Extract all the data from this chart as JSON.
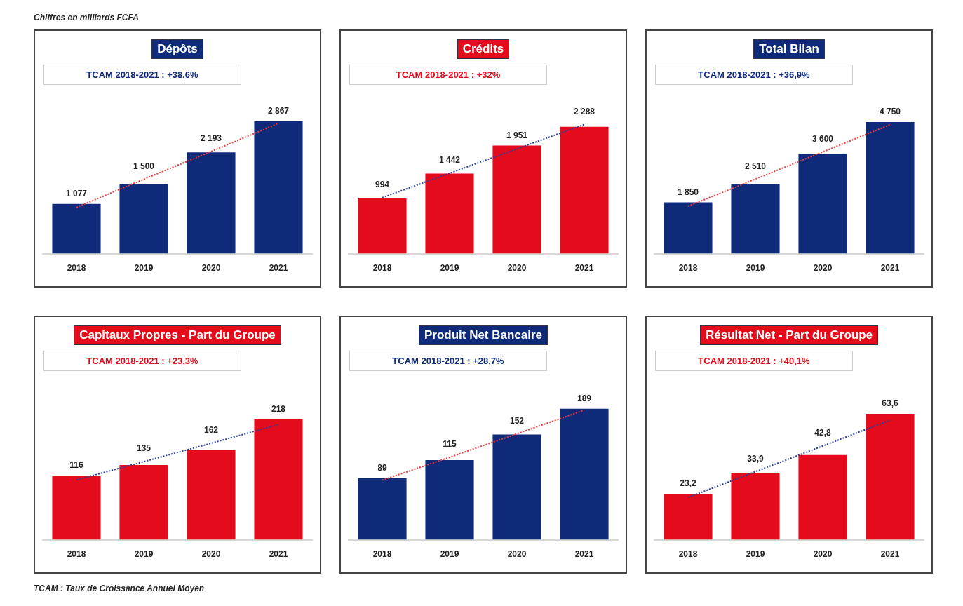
{
  "chart_data": [
    {
      "type": "bar",
      "title": "Dépôts",
      "subtitle": "TCAM 2018-2021 : +38,6%",
      "annotations": [
        "Chiffres en milliards FCFA"
      ],
      "categories": [
        "2018",
        "2019",
        "2020",
        "2021"
      ],
      "series": [
        {
          "type": "bar",
          "color": "#0e2a78",
          "values": [
            1077,
            1500,
            2193,
            2867
          ],
          "value_labels": [
            "1 077",
            "1 500",
            "2 193",
            "2 867"
          ]
        },
        {
          "type": "line",
          "color": "#f03a3a",
          "values": [
            1000,
            1610,
            2210,
            2820
          ],
          "line_style": "dotted",
          "marker": "none"
        }
      ]
    },
    {
      "type": "bar",
      "title": "Crédits",
      "subtitle": "TCAM 2018-2021 : +32%",
      "categories": [
        "2018",
        "2019",
        "2020",
        "2021"
      ],
      "series": [
        {
          "type": "bar",
          "color": "#e30b1c",
          "values": [
            994,
            1442,
            1951,
            2288
          ],
          "value_labels": [
            "994",
            "1 442",
            "1 951",
            "2 288"
          ]
        },
        {
          "type": "line",
          "color": "#2b3f9e",
          "values": [
            1010,
            1450,
            1890,
            2330
          ],
          "line_style": "dotted",
          "marker": "none"
        }
      ]
    },
    {
      "type": "bar",
      "title": "Total Bilan",
      "subtitle": "TCAM 2018-2021 : +36,9%",
      "categories": [
        "2018",
        "2019",
        "2020",
        "2021"
      ],
      "series": [
        {
          "type": "bar",
          "color": "#0e2a78",
          "values": [
            1850,
            2510,
            3600,
            4750
          ],
          "value_labels": [
            "1 850",
            "2 510",
            "3 600",
            "4 750"
          ]
        },
        {
          "type": "line",
          "color": "#f03a3a",
          "values": [
            1710,
            2690,
            3670,
            4650
          ],
          "line_style": "dotted",
          "marker": "none"
        }
      ]
    },
    {
      "type": "bar",
      "title": "Capitaux Propres - Part du Groupe",
      "subtitle": "TCAM 2018-2021 : +23,3%",
      "categories": [
        "2018",
        "2019",
        "2020",
        "2021"
      ],
      "series": [
        {
          "type": "bar",
          "color": "#e30b1c",
          "values": [
            116,
            135,
            162,
            218
          ],
          "value_labels": [
            "116",
            "135",
            "162",
            "218"
          ]
        },
        {
          "type": "line",
          "color": "#2b3f9e",
          "values": [
            108,
            141,
            174,
            208
          ],
          "line_style": "dotted",
          "marker": "none"
        }
      ]
    },
    {
      "type": "bar",
      "title": "Produit Net Bancaire",
      "subtitle": "TCAM 2018-2021 : +28,7%",
      "categories": [
        "2018",
        "2019",
        "2020",
        "2021"
      ],
      "series": [
        {
          "type": "bar",
          "color": "#0e2a78",
          "values": [
            89,
            115,
            152,
            189
          ],
          "value_labels": [
            "89",
            "115",
            "152",
            "189"
          ]
        },
        {
          "type": "line",
          "color": "#f03a3a",
          "values": [
            86,
            119,
            153,
            187
          ],
          "line_style": "dotted",
          "marker": "none"
        }
      ]
    },
    {
      "type": "bar",
      "title": "Résultat Net - Part du Groupe",
      "subtitle": "TCAM 2018-2021 : +40,1%",
      "annotations": [
        "TCAM : Taux de Croissance Annuel Moyen"
      ],
      "categories": [
        "2018",
        "2019",
        "2020",
        "2021"
      ],
      "series": [
        {
          "type": "bar",
          "color": "#e30b1c",
          "values": [
            23.2,
            33.9,
            42.8,
            63.6
          ],
          "value_labels": [
            "23,2",
            "33,9",
            "42,8",
            "63,6"
          ]
        },
        {
          "type": "line",
          "color": "#2b3f9e",
          "values": [
            21.4,
            34.4,
            47.4,
            60.4
          ],
          "line_style": "dotted",
          "marker": "none"
        }
      ]
    }
  ]
}
